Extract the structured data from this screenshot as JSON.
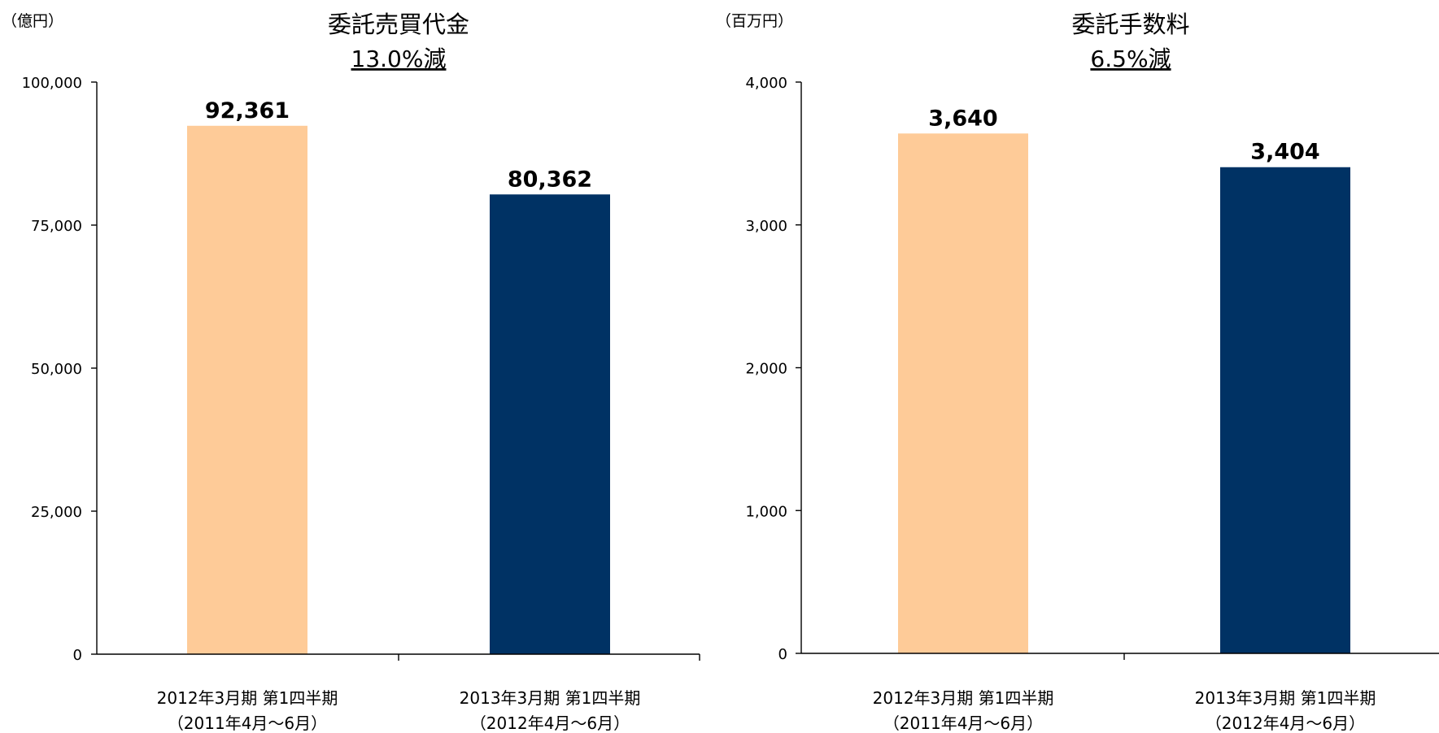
{
  "chart_data": [
    {
      "type": "bar",
      "title": "委託売買代金",
      "subtitle": "13.0%減",
      "unit": "（億円）",
      "ylim": [
        0,
        100000
      ],
      "yticks": [
        0,
        25000,
        50000,
        75000,
        100000
      ],
      "ytick_labels": [
        "0",
        "25,000",
        "50,000",
        "75,000",
        "100,000"
      ],
      "categories": [
        [
          "2012年3月期 第1四半期",
          "（2011年4月～6月）"
        ],
        [
          "2013年3月期 第1四半期",
          "（2012年4月～6月）"
        ]
      ],
      "values": [
        92361,
        80362
      ],
      "value_labels": [
        "92,361",
        "80,362"
      ],
      "colors": [
        "#FECB98",
        "#003264"
      ],
      "grid": false
    },
    {
      "type": "bar",
      "title": "委託手数料",
      "subtitle": "6.5%減",
      "unit": "（百万円）",
      "ylim": [
        0,
        4000
      ],
      "yticks": [
        0,
        1000,
        2000,
        3000,
        4000
      ],
      "ytick_labels": [
        "0",
        "1,000",
        "2,000",
        "3,000",
        "4,000"
      ],
      "categories": [
        [
          "2012年3月期 第1四半期",
          "（2011年4月～6月）"
        ],
        [
          "2013年3月期 第1四半期",
          "（2012年4月～6月）"
        ]
      ],
      "values": [
        3640,
        3404
      ],
      "value_labels": [
        "3,640",
        "3,404"
      ],
      "colors": [
        "#FECB98",
        "#003264"
      ],
      "grid": false
    }
  ]
}
